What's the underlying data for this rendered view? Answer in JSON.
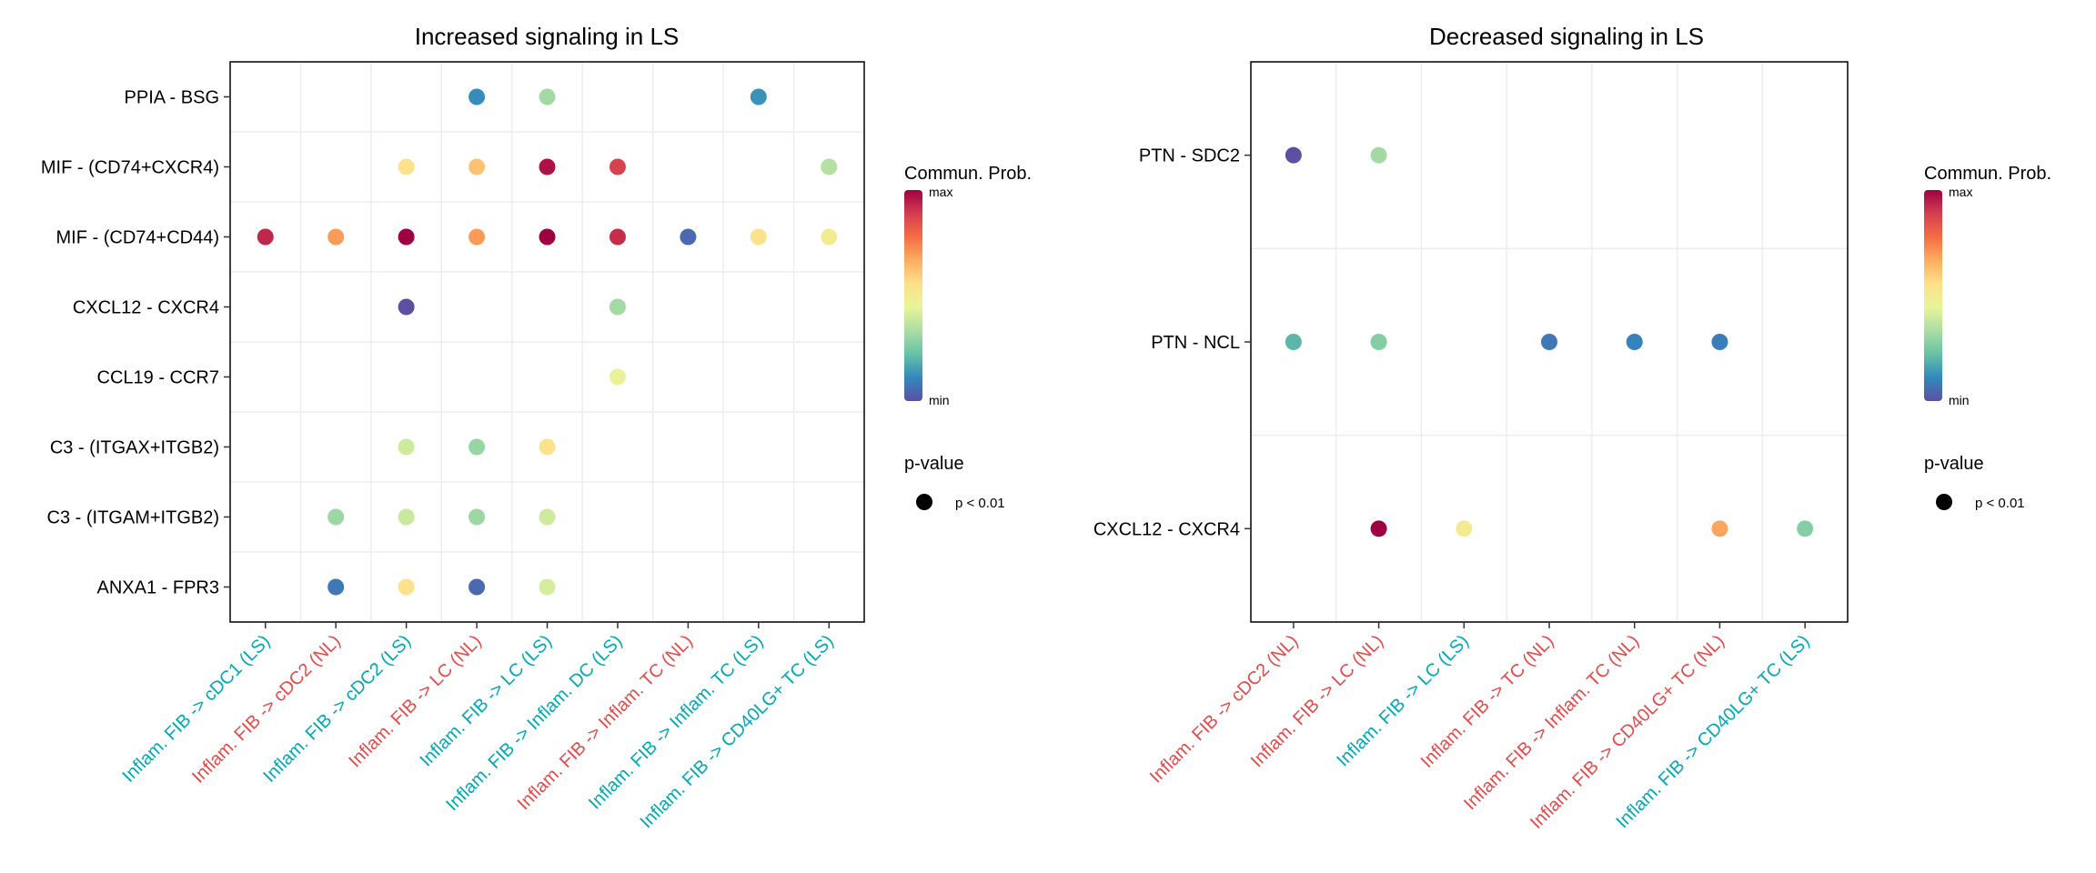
{
  "chart_data": [
    {
      "type": "scatter",
      "title": "Increased signaling in LS",
      "xlabel": "",
      "ylabel": "",
      "x_categories": [
        "Inflam. FIB -> cDC1 (LS)",
        "Inflam. FIB -> cDC2 (NL)",
        "Inflam. FIB -> cDC2 (LS)",
        "Inflam. FIB -> LC (NL)",
        "Inflam. FIB -> LC (LS)",
        "Inflam. FIB -> Inflam. DC (LS)",
        "Inflam. FIB -> Inflam. TC (NL)",
        "Inflam. FIB -> Inflam. TC (LS)",
        "Inflam. FIB -> CD40LG+ TC (LS)"
      ],
      "x_category_groups": [
        "LS",
        "NL",
        "LS",
        "NL",
        "LS",
        "LS",
        "NL",
        "LS",
        "LS"
      ],
      "y_categories": [
        "PPIA - BSG",
        "MIF - (CD74+CXCR4)",
        "MIF - (CD74+CD44)",
        "CXCL12 - CXCR4",
        "CCL19 - CCR7",
        "C3 - (ITGAX+ITGB2)",
        "C3 - (ITGAM+ITGB2)",
        "ANXA1 - FPR3"
      ],
      "points": [
        {
          "x": 3,
          "y": 0,
          "prob": 0.12
        },
        {
          "x": 4,
          "y": 0,
          "prob": 0.32
        },
        {
          "x": 7,
          "y": 0,
          "prob": 0.13
        },
        {
          "x": 2,
          "y": 1,
          "prob": 0.55
        },
        {
          "x": 3,
          "y": 1,
          "prob": 0.62
        },
        {
          "x": 4,
          "y": 1,
          "prob": 0.97
        },
        {
          "x": 5,
          "y": 1,
          "prob": 0.88
        },
        {
          "x": 8,
          "y": 1,
          "prob": 0.35
        },
        {
          "x": 0,
          "y": 2,
          "prob": 0.93
        },
        {
          "x": 1,
          "y": 2,
          "prob": 0.7
        },
        {
          "x": 2,
          "y": 2,
          "prob": 1.0
        },
        {
          "x": 3,
          "y": 2,
          "prob": 0.7
        },
        {
          "x": 4,
          "y": 2,
          "prob": 1.0
        },
        {
          "x": 5,
          "y": 2,
          "prob": 0.92
        },
        {
          "x": 6,
          "y": 2,
          "prob": 0.05
        },
        {
          "x": 7,
          "y": 2,
          "prob": 0.55
        },
        {
          "x": 8,
          "y": 2,
          "prob": 0.5
        },
        {
          "x": 2,
          "y": 3,
          "prob": 0.0
        },
        {
          "x": 5,
          "y": 3,
          "prob": 0.32
        },
        {
          "x": 5,
          "y": 4,
          "prob": 0.46
        },
        {
          "x": 2,
          "y": 5,
          "prob": 0.4
        },
        {
          "x": 3,
          "y": 5,
          "prob": 0.3
        },
        {
          "x": 4,
          "y": 5,
          "prob": 0.54
        },
        {
          "x": 1,
          "y": 6,
          "prob": 0.31
        },
        {
          "x": 2,
          "y": 6,
          "prob": 0.39
        },
        {
          "x": 3,
          "y": 6,
          "prob": 0.31
        },
        {
          "x": 4,
          "y": 6,
          "prob": 0.4
        },
        {
          "x": 1,
          "y": 7,
          "prob": 0.08
        },
        {
          "x": 2,
          "y": 7,
          "prob": 0.55
        },
        {
          "x": 3,
          "y": 7,
          "prob": 0.05
        },
        {
          "x": 4,
          "y": 7,
          "prob": 0.41
        }
      ],
      "color_legend": {
        "title": "Commun. Prob.",
        "max_label": "max",
        "min_label": "min"
      },
      "size_legend": {
        "title": "p-value",
        "label": "p < 0.01"
      },
      "grid": true,
      "legend_position": "right"
    },
    {
      "type": "scatter",
      "title": "Decreased signaling in LS",
      "xlabel": "",
      "ylabel": "",
      "x_categories": [
        "Inflam. FIB -> cDC2 (NL)",
        "Inflam. FIB -> LC (NL)",
        "Inflam. FIB -> LC (LS)",
        "Inflam. FIB -> TC (NL)",
        "Inflam. FIB -> Inflam. TC (NL)",
        "Inflam. FIB -> CD40LG+ TC (NL)",
        "Inflam. FIB -> CD40LG+ TC (LS)"
      ],
      "x_category_groups": [
        "NL",
        "NL",
        "LS",
        "NL",
        "NL",
        "NL",
        "LS"
      ],
      "y_categories": [
        "PTN - SDC2",
        "PTN - NCL",
        "CXCL12 - CXCR4"
      ],
      "points": [
        {
          "x": 0,
          "y": 0,
          "prob": 0.0
        },
        {
          "x": 1,
          "y": 0,
          "prob": 0.32
        },
        {
          "x": 0,
          "y": 1,
          "prob": 0.2
        },
        {
          "x": 1,
          "y": 1,
          "prob": 0.27
        },
        {
          "x": 3,
          "y": 1,
          "prob": 0.08
        },
        {
          "x": 4,
          "y": 1,
          "prob": 0.1
        },
        {
          "x": 5,
          "y": 1,
          "prob": 0.09
        },
        {
          "x": 1,
          "y": 2,
          "prob": 1.0
        },
        {
          "x": 2,
          "y": 2,
          "prob": 0.5
        },
        {
          "x": 5,
          "y": 2,
          "prob": 0.68
        },
        {
          "x": 6,
          "y": 2,
          "prob": 0.27
        }
      ],
      "color_legend": {
        "title": "Commun. Prob.",
        "max_label": "max",
        "min_label": "min"
      },
      "size_legend": {
        "title": "p-value",
        "label": "p < 0.01"
      },
      "grid": true,
      "legend_position": "right"
    }
  ],
  "colors": {
    "LS_label": "#00A9B5",
    "NL_label": "#E64B4B",
    "colorscale": [
      "#5E4FA2",
      "#3288BD",
      "#66C2A5",
      "#ABDDA4",
      "#E6F598",
      "#FEE08B",
      "#FDAE61",
      "#F46D43",
      "#D53E4F",
      "#9E0142"
    ]
  }
}
